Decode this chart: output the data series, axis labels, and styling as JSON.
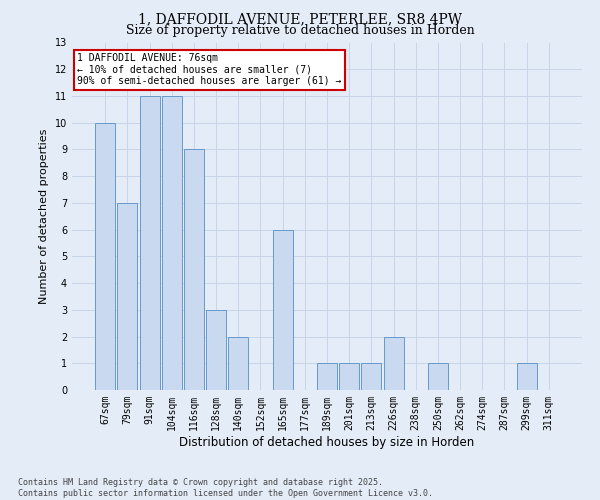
{
  "title1": "1, DAFFODIL AVENUE, PETERLEE, SR8 4PW",
  "title2": "Size of property relative to detached houses in Horden",
  "xlabel": "Distribution of detached houses by size in Horden",
  "ylabel": "Number of detached properties",
  "categories": [
    "67sqm",
    "79sqm",
    "91sqm",
    "104sqm",
    "116sqm",
    "128sqm",
    "140sqm",
    "152sqm",
    "165sqm",
    "177sqm",
    "189sqm",
    "201sqm",
    "213sqm",
    "226sqm",
    "238sqm",
    "250sqm",
    "262sqm",
    "274sqm",
    "287sqm",
    "299sqm",
    "311sqm"
  ],
  "values": [
    10,
    7,
    11,
    11,
    9,
    3,
    2,
    0,
    6,
    0,
    1,
    1,
    1,
    2,
    0,
    1,
    0,
    0,
    0,
    1,
    0
  ],
  "bar_color": "#c9d9ef",
  "bar_edge_color": "#6699cc",
  "annotation_text": "1 DAFFODIL AVENUE: 76sqm\n← 10% of detached houses are smaller (7)\n90% of semi-detached houses are larger (61) →",
  "annotation_box_color": "#ffffff",
  "annotation_box_edge": "#cc0000",
  "ylim": [
    0,
    13
  ],
  "yticks": [
    0,
    1,
    2,
    3,
    4,
    5,
    6,
    7,
    8,
    9,
    10,
    11,
    12,
    13
  ],
  "grid_color": "#c8d4e8",
  "background_color": "#e4ecf7",
  "footer": "Contains HM Land Registry data © Crown copyright and database right 2025.\nContains public sector information licensed under the Open Government Licence v3.0.",
  "title1_fontsize": 10,
  "title2_fontsize": 9,
  "xlabel_fontsize": 8.5,
  "ylabel_fontsize": 8,
  "tick_fontsize": 7,
  "footer_fontsize": 6,
  "annotation_fontsize": 7
}
